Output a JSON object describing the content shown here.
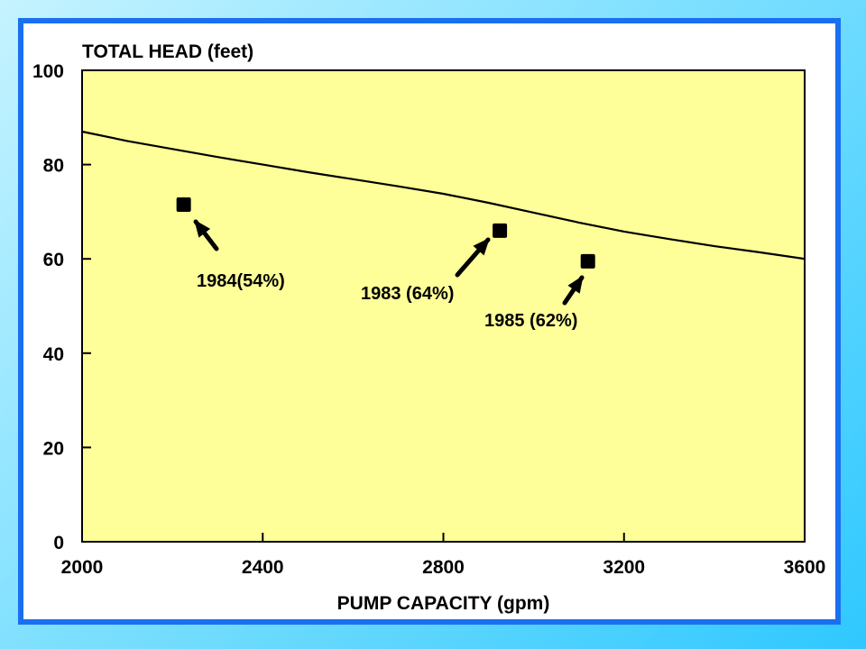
{
  "colors": {
    "frame_border": "#1a6ff0",
    "plot_background": "#ffff99",
    "line": "#000000",
    "marker": "#000000"
  },
  "chart_data": {
    "type": "line",
    "ylabel": "TOTAL HEAD (feet)",
    "xlabel": "PUMP CAPACITY (gpm)",
    "xlim": [
      2000,
      3600
    ],
    "ylim": [
      0,
      100
    ],
    "xticks": [
      2000,
      2400,
      2800,
      3200,
      3600
    ],
    "yticks": [
      0,
      20,
      40,
      60,
      80,
      100
    ],
    "grid": false,
    "series": [
      {
        "kind": "line",
        "x": [
          2000,
          2100,
          2200,
          2300,
          2400,
          2500,
          2600,
          2700,
          2800,
          2900,
          3000,
          3100,
          3200,
          3300,
          3400,
          3500,
          3600
        ],
        "y": [
          87,
          85,
          83.3,
          81.6,
          80,
          78.4,
          76.9,
          75.4,
          73.8,
          71.9,
          69.8,
          67.7,
          65.8,
          64.2,
          62.7,
          61.4,
          60
        ]
      },
      {
        "kind": "scatter",
        "points": [
          {
            "label": "1984(54%)",
            "x": 2225,
            "y": 71.5
          },
          {
            "label": "1983 (64%)",
            "x": 2925,
            "y": 66
          },
          {
            "label": "1985 (62%)",
            "x": 3120,
            "y": 59.5
          }
        ]
      }
    ]
  }
}
